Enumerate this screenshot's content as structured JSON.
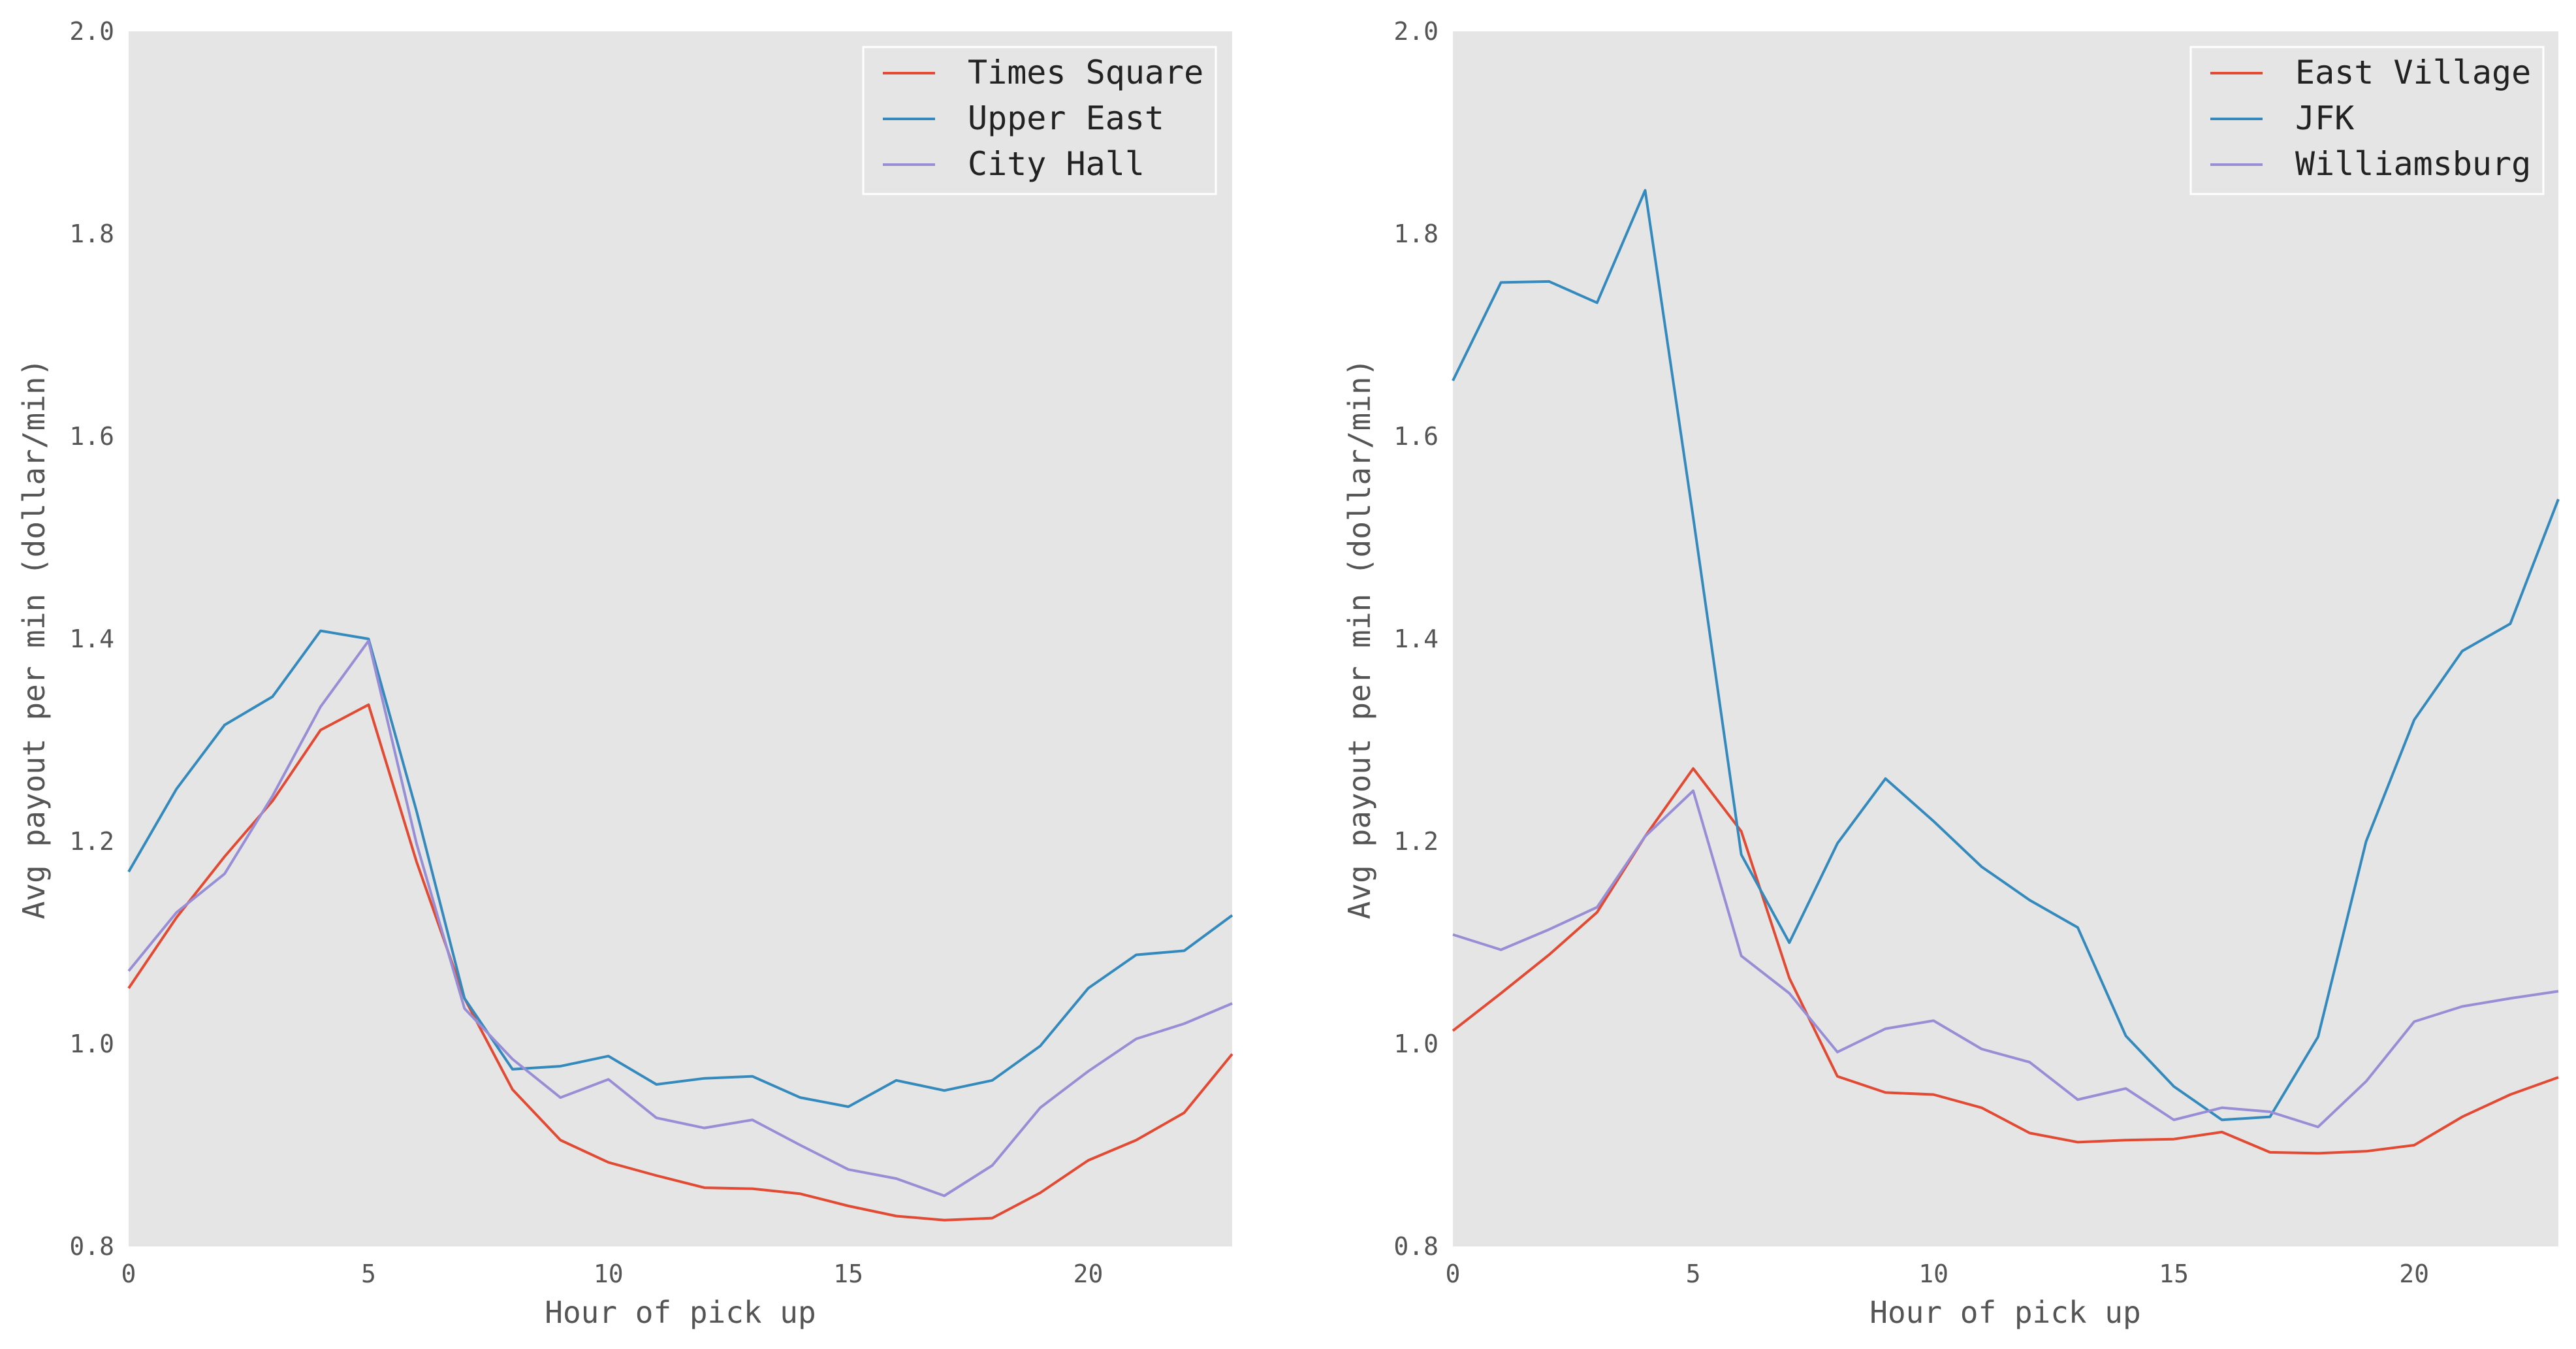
{
  "chart_data": [
    {
      "type": "line",
      "title": "",
      "xlabel": "Hour of pick up",
      "ylabel": "Avg payout per min (dollar/min)",
      "xlim": [
        0,
        23
      ],
      "ylim": [
        0.8,
        2.0
      ],
      "xticks": [
        0,
        5,
        10,
        15,
        20
      ],
      "yticks": [
        0.8,
        1.0,
        1.2,
        1.4,
        1.6,
        1.8,
        2.0
      ],
      "xtick_labels": [
        "0",
        "5",
        "10",
        "15",
        "20"
      ],
      "ytick_labels": [
        "0.8",
        "1.0",
        "1.2",
        "1.4",
        "1.6",
        "1.8",
        "2.0"
      ],
      "grid": false,
      "legend_position": "top-right",
      "x": [
        0,
        1,
        2,
        3,
        4,
        5,
        6,
        7,
        8,
        9,
        10,
        11,
        12,
        13,
        14,
        15,
        16,
        17,
        18,
        19,
        20,
        21,
        22,
        23
      ],
      "series": [
        {
          "name": "Times Square",
          "color": "#E24A33",
          "values": [
            1.055,
            1.125,
            1.185,
            1.24,
            1.31,
            1.335,
            1.18,
            1.045,
            0.955,
            0.905,
            0.883,
            0.87,
            0.858,
            0.857,
            0.852,
            0.84,
            0.83,
            0.826,
            0.828,
            0.853,
            0.885,
            0.905,
            0.932,
            0.99
          ]
        },
        {
          "name": "Upper East",
          "color": "#348ABD",
          "values": [
            1.17,
            1.252,
            1.315,
            1.343,
            1.408,
            1.4,
            1.23,
            1.045,
            0.975,
            0.978,
            0.988,
            0.96,
            0.966,
            0.968,
            0.947,
            0.938,
            0.964,
            0.954,
            0.964,
            0.998,
            1.055,
            1.088,
            1.092,
            1.127
          ]
        },
        {
          "name": "City Hall",
          "color": "#988ED5",
          "values": [
            1.072,
            1.13,
            1.168,
            1.245,
            1.333,
            1.398,
            1.198,
            1.035,
            0.985,
            0.947,
            0.965,
            0.927,
            0.917,
            0.925,
            0.9,
            0.876,
            0.867,
            0.85,
            0.88,
            0.937,
            0.973,
            1.005,
            1.02,
            1.04
          ]
        }
      ]
    },
    {
      "type": "line",
      "title": "",
      "xlabel": "Hour of pick up",
      "ylabel": "Avg payout per min (dollar/min)",
      "xlim": [
        0,
        23
      ],
      "ylim": [
        0.8,
        2.0
      ],
      "xticks": [
        0,
        5,
        10,
        15,
        20
      ],
      "yticks": [
        0.8,
        1.0,
        1.2,
        1.4,
        1.6,
        1.8,
        2.0
      ],
      "xtick_labels": [
        "0",
        "5",
        "10",
        "15",
        "20"
      ],
      "ytick_labels": [
        "0.8",
        "1.0",
        "1.2",
        "1.4",
        "1.6",
        "1.8",
        "2.0"
      ],
      "grid": false,
      "legend_position": "top-right",
      "x": [
        0,
        1,
        2,
        3,
        4,
        5,
        6,
        7,
        8,
        9,
        10,
        11,
        12,
        13,
        14,
        15,
        16,
        17,
        18,
        19,
        20,
        21,
        22,
        23
      ],
      "series": [
        {
          "name": "East Village",
          "color": "#E24A33",
          "values": [
            1.013,
            1.05,
            1.088,
            1.13,
            1.205,
            1.272,
            1.21,
            1.065,
            0.968,
            0.952,
            0.95,
            0.937,
            0.912,
            0.903,
            0.905,
            0.906,
            0.913,
            0.893,
            0.892,
            0.894,
            0.9,
            0.928,
            0.95,
            0.967
          ]
        },
        {
          "name": "JFK",
          "color": "#348ABD",
          "values": [
            1.655,
            1.752,
            1.753,
            1.732,
            1.843,
            1.52,
            1.187,
            1.1,
            1.198,
            1.262,
            1.22,
            1.175,
            1.142,
            1.115,
            1.008,
            0.958,
            0.925,
            0.928,
            1.007,
            1.2,
            1.32,
            1.388,
            1.415,
            1.538
          ]
        },
        {
          "name": "Williamsburg",
          "color": "#988ED5",
          "values": [
            1.108,
            1.093,
            1.113,
            1.135,
            1.205,
            1.25,
            1.087,
            1.05,
            0.992,
            1.015,
            1.023,
            0.995,
            0.982,
            0.945,
            0.956,
            0.925,
            0.937,
            0.933,
            0.918,
            0.963,
            1.022,
            1.037,
            1.045,
            1.052
          ]
        }
      ]
    }
  ]
}
